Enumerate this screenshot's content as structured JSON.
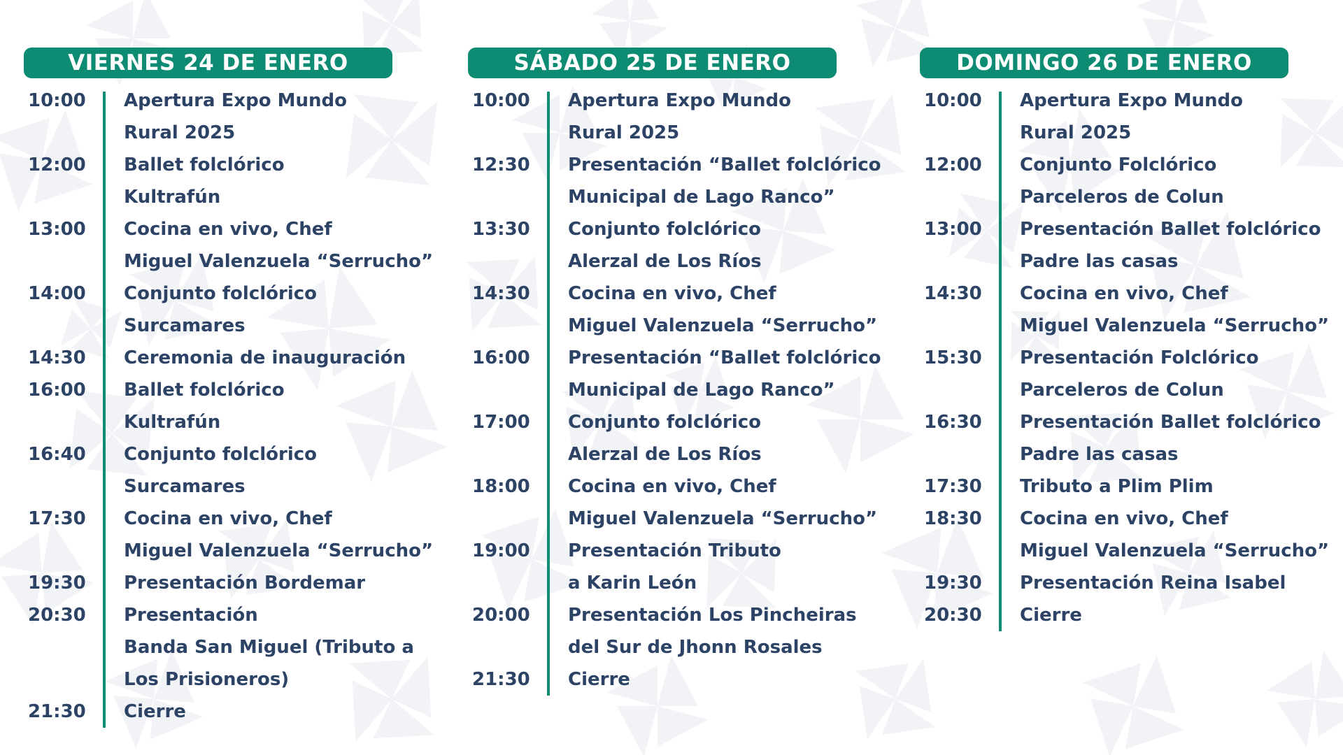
{
  "days": [
    {
      "title": "VIERNES 24 DE ENERO",
      "events": [
        {
          "time": "10:00",
          "lines": [
            "Apertura Expo Mundo",
            "Rural 2025"
          ]
        },
        {
          "time": "12:00",
          "lines": [
            "Ballet folclórico",
            "Kultrafún"
          ]
        },
        {
          "time": "13:00",
          "lines": [
            "Cocina en vivo, Chef",
            "Miguel Valenzuela “Serrucho”"
          ]
        },
        {
          "time": "14:00",
          "lines": [
            "Conjunto folclórico",
            "Surcamares"
          ]
        },
        {
          "time": "14:30",
          "lines": [
            "Ceremonia de inauguración"
          ]
        },
        {
          "time": "16:00",
          "lines": [
            "Ballet folclórico",
            "Kultrafún"
          ]
        },
        {
          "time": "16:40",
          "lines": [
            "Conjunto folclórico",
            "Surcamares"
          ]
        },
        {
          "time": "17:30",
          "lines": [
            "Cocina en vivo, Chef",
            "Miguel Valenzuela “Serrucho”"
          ]
        },
        {
          "time": "19:30",
          "lines": [
            "Presentación Bordemar"
          ]
        },
        {
          "time": "20:30",
          "lines": [
            "Presentación",
            "Banda San Miguel (Tributo a",
            "Los Prisioneros)"
          ]
        },
        {
          "time": "21:30",
          "lines": [
            "Cierre"
          ]
        }
      ]
    },
    {
      "title": "SÁBADO 25 DE ENERO",
      "events": [
        {
          "time": "10:00",
          "lines": [
            "Apertura Expo Mundo",
            "Rural 2025"
          ]
        },
        {
          "time": "12:30",
          "lines": [
            "Presentación “Ballet folclórico",
            "Municipal de Lago Ranco”"
          ]
        },
        {
          "time": "13:30",
          "lines": [
            "Conjunto folclórico",
            "Alerzal de Los Ríos"
          ]
        },
        {
          "time": "14:30",
          "lines": [
            "Cocina en vivo, Chef",
            "Miguel Valenzuela “Serrucho”"
          ]
        },
        {
          "time": "16:00",
          "lines": [
            "Presentación “Ballet folclórico",
            "Municipal de Lago Ranco”"
          ]
        },
        {
          "time": "17:00",
          "lines": [
            "Conjunto folclórico",
            "Alerzal de Los Ríos"
          ]
        },
        {
          "time": "18:00",
          "lines": [
            "Cocina en vivo, Chef",
            "Miguel Valenzuela “Serrucho”"
          ]
        },
        {
          "time": "19:00",
          "lines": [
            "Presentación Tributo",
            "a Karin León"
          ]
        },
        {
          "time": "20:00",
          "lines": [
            "Presentación Los Pincheiras",
            "del Sur de Jhonn Rosales"
          ]
        },
        {
          "time": "21:30",
          "lines": [
            "Cierre"
          ]
        }
      ]
    },
    {
      "title": "DOMINGO 26 DE ENERO",
      "events": [
        {
          "time": "10:00",
          "lines": [
            "Apertura Expo Mundo",
            "Rural 2025"
          ]
        },
        {
          "time": "12:00",
          "lines": [
            "Conjunto Folclórico",
            "Parceleros de Colun"
          ]
        },
        {
          "time": "13:00",
          "lines": [
            "Presentación Ballet folclórico",
            "Padre las casas"
          ]
        },
        {
          "time": "14:30",
          "lines": [
            "Cocina en vivo, Chef",
            "Miguel Valenzuela “Serrucho”"
          ]
        },
        {
          "time": "15:30",
          "lines": [
            "Presentación Folclórico",
            "Parceleros de Colun"
          ]
        },
        {
          "time": "16:30",
          "lines": [
            "Presentación Ballet folclórico",
            "Padre las casas"
          ]
        },
        {
          "time": "17:30",
          "lines": [
            "Tributo a Plim Plim"
          ]
        },
        {
          "time": "18:30",
          "lines": [
            "Cocina en vivo, Chef",
            "Miguel Valenzuela “Serrucho”"
          ]
        },
        {
          "time": "19:30",
          "lines": [
            "Presentación Reina Isabel"
          ]
        },
        {
          "time": "20:30",
          "lines": [
            "Cierre"
          ]
        }
      ]
    }
  ],
  "colors": {
    "accent": "#0d8b73",
    "text": "#2d4366",
    "pattern": "#e6ebf0"
  }
}
